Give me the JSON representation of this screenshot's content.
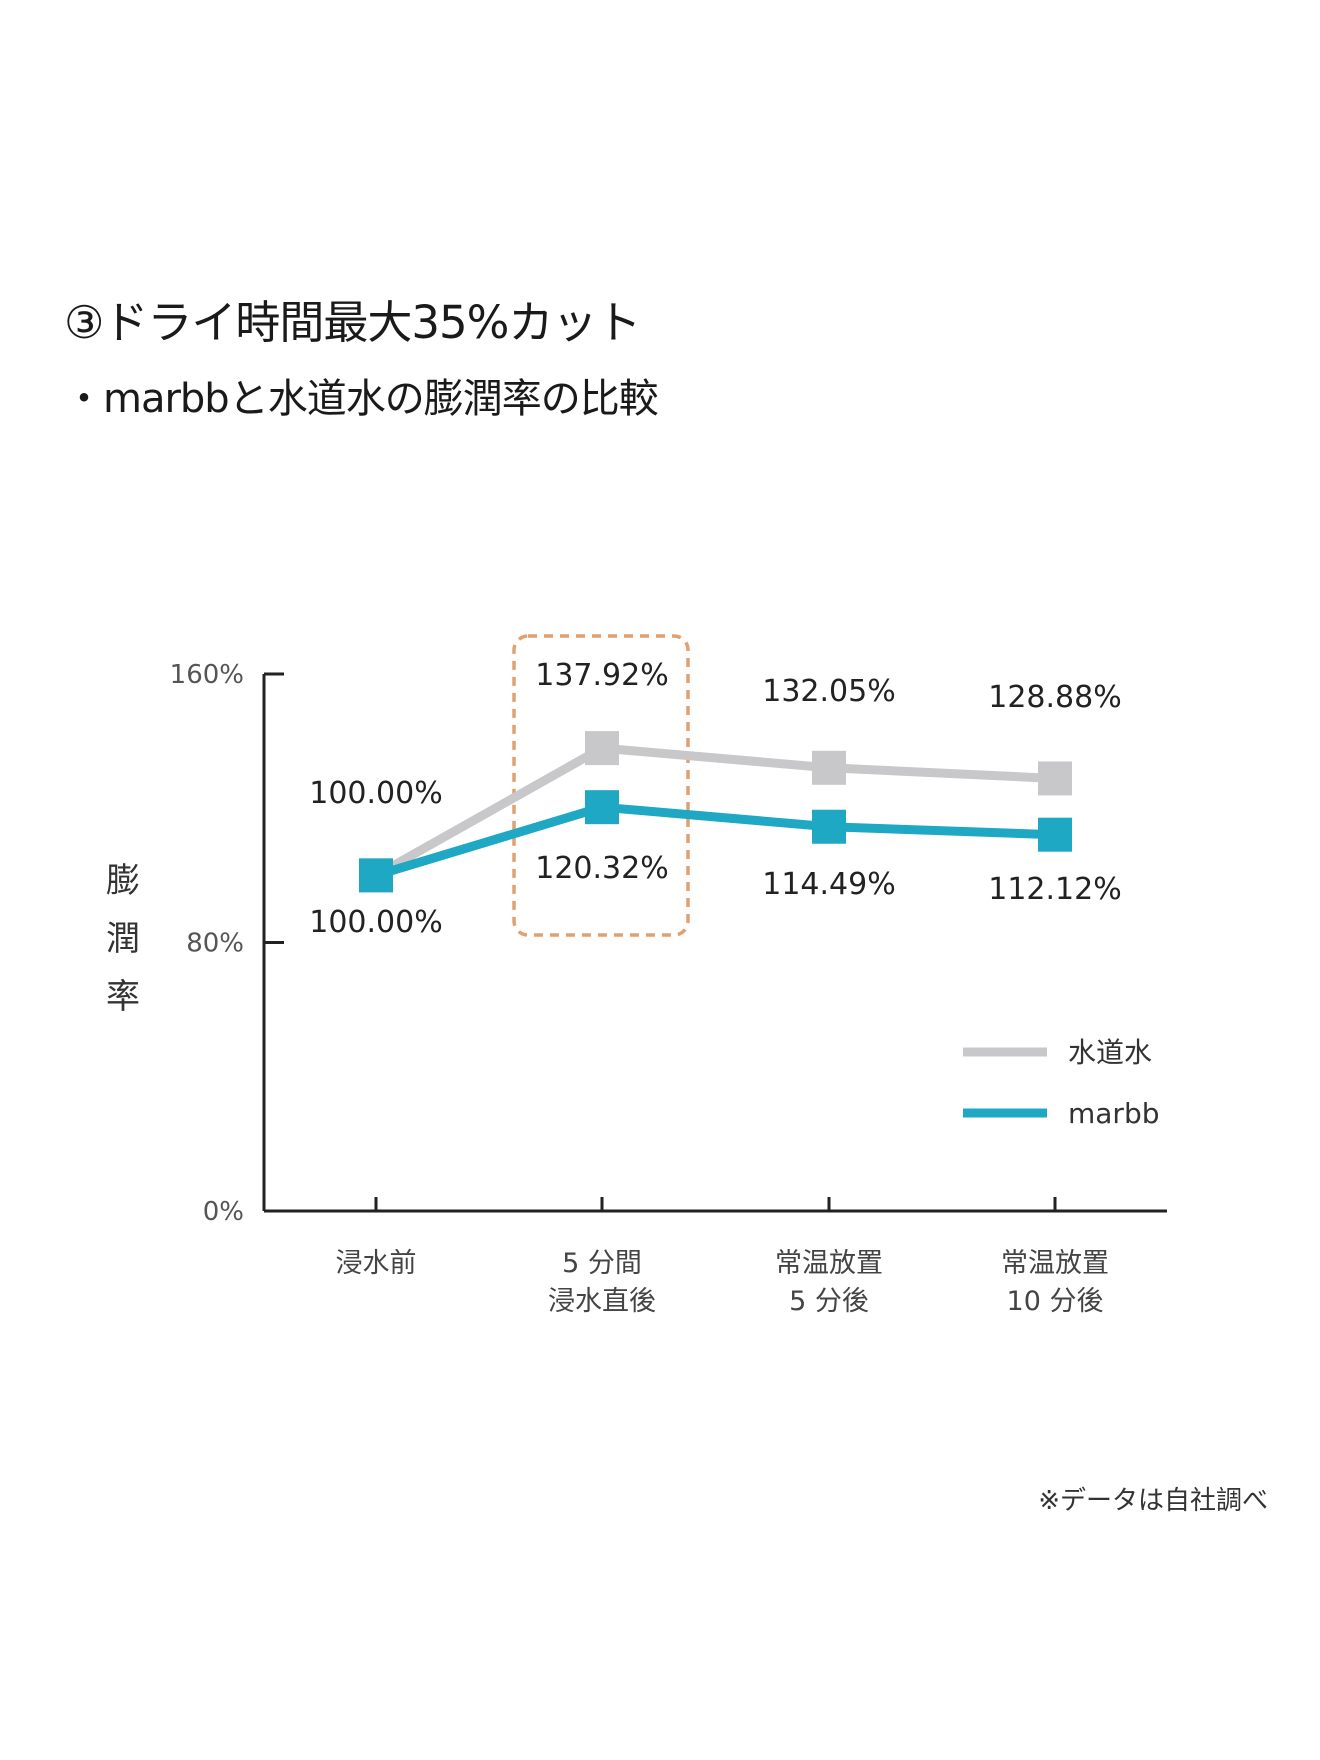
{
  "title": "③ドライ時間最大35%カット",
  "subtitle": "・marbbと水道水の膨潤率の比較",
  "footnote": "※データは自社調べ",
  "chart_data": {
    "type": "line",
    "ylabel": "膨潤率",
    "xlabel": "",
    "ylim": [
      0,
      160
    ],
    "yticks": [
      {
        "v": 0,
        "label": "0%"
      },
      {
        "v": 80,
        "label": "80%"
      },
      {
        "v": 160,
        "label": "160%"
      }
    ],
    "categories": [
      [
        "浸水前"
      ],
      [
        "5 分間",
        "浸水直後"
      ],
      [
        "常温放置",
        "5 分後"
      ],
      [
        "常温放置",
        "10 分後"
      ]
    ],
    "series": [
      {
        "name": "水道水",
        "color": "#c8c8ca",
        "values": [
          100.0,
          137.92,
          132.05,
          128.88
        ],
        "labels": [
          "100.00%",
          "137.92%",
          "132.05%",
          "128.88%"
        ]
      },
      {
        "name": "marbb",
        "color": "#1fa8c4",
        "values": [
          100.0,
          120.32,
          114.49,
          112.12
        ],
        "labels": [
          "100.00%",
          "120.32%",
          "114.49%",
          "112.12%"
        ]
      }
    ],
    "highlight": {
      "category_index": 1,
      "color": "#e0a070"
    },
    "legend_position": "right",
    "grid": false
  }
}
